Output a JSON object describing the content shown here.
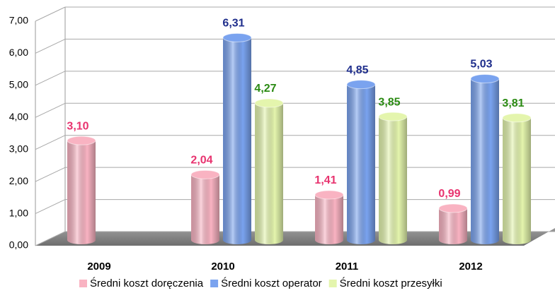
{
  "chart_data": {
    "type": "bar",
    "categories": [
      "2009",
      "2010",
      "2011",
      "2012"
    ],
    "series": [
      {
        "name": "Średni koszt doręczenia",
        "color": "#f9b3c2",
        "label_color": "#e8336f",
        "values": [
          3.1,
          2.04,
          1.41,
          0.99
        ],
        "value_labels": [
          "3,10",
          "2,04",
          "1,41",
          "0,99"
        ]
      },
      {
        "name": "Średni koszt operator",
        "color": "#7aa3ef",
        "label_color": "#1f2e8c",
        "values": [
          null,
          6.31,
          4.85,
          5.03
        ],
        "value_labels": [
          null,
          "6,31",
          "4,85",
          "5,03"
        ]
      },
      {
        "name": "Średni koszt przesyłki",
        "color": "#e4f5ad",
        "label_color": "#2a8a12",
        "values": [
          null,
          4.27,
          3.85,
          3.81
        ],
        "value_labels": [
          null,
          "4,27",
          "3,85",
          "3,81"
        ]
      }
    ],
    "ylim": [
      0,
      7
    ],
    "yticks": [
      {
        "value": 0,
        "label": "0,00"
      },
      {
        "value": 1,
        "label": "1,00"
      },
      {
        "value": 2,
        "label": "2,00"
      },
      {
        "value": 3,
        "label": "3,00"
      },
      {
        "value": 4,
        "label": "4,00"
      },
      {
        "value": 5,
        "label": "5,00"
      },
      {
        "value": 6,
        "label": "6,00"
      },
      {
        "value": 7,
        "label": "7,00"
      }
    ],
    "grid": true,
    "legend": "bottom"
  }
}
